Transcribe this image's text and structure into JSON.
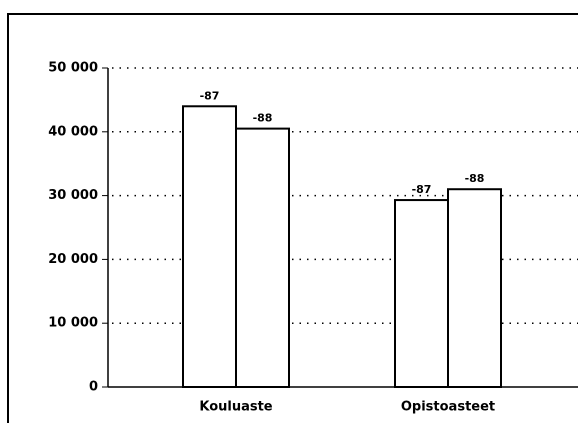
{
  "chart_data": {
    "type": "bar",
    "categories": [
      "Kouluaste",
      "Opistoasteet"
    ],
    "series": [
      {
        "name": "-87",
        "color": "#ffffff",
        "values": [
          44000,
          29300
        ]
      },
      {
        "name": "-88",
        "color": "#ffffff",
        "values": [
          40500,
          31000
        ]
      }
    ],
    "ylim": [
      0,
      50000
    ],
    "yticks": [
      0,
      {
        "value": 10000,
        "label": "10 000"
      },
      {
        "value": 20000,
        "label": "20 000"
      },
      {
        "value": 30000,
        "label": "30 000"
      },
      {
        "value": 40000,
        "label": "40 000"
      },
      {
        "value": 50000,
        "label": "50 000"
      }
    ],
    "grid": true
  }
}
